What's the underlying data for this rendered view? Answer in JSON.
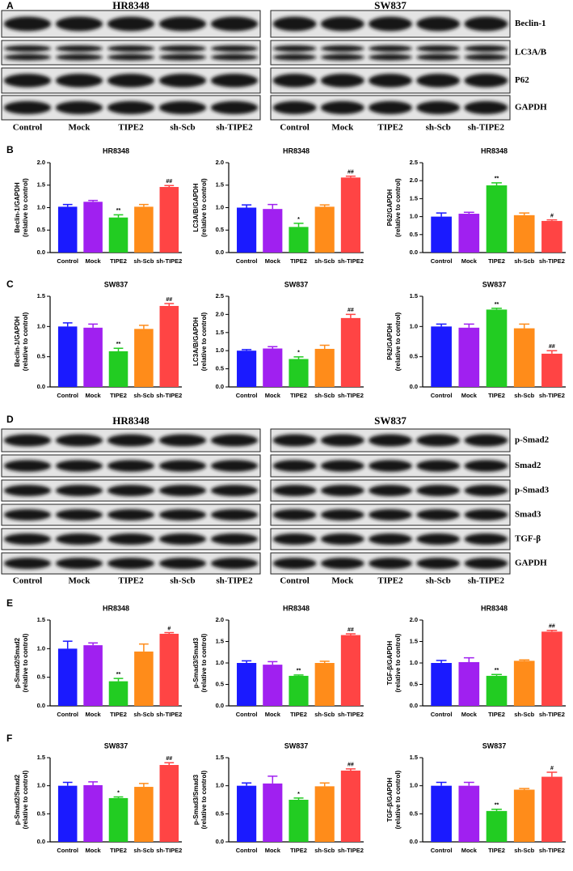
{
  "panels": [
    "A",
    "B",
    "C",
    "D",
    "E",
    "F"
  ],
  "blots": [
    {
      "cell_lines": [
        "HR8348",
        "SW837"
      ],
      "proteins": [
        "Beclin-1",
        "LC3A/B",
        "P62",
        "GAPDH"
      ],
      "lanes": [
        "Control",
        "Mock",
        "TIPE2",
        "sh-Scb",
        "sh-TIPE2"
      ]
    },
    {
      "cell_lines": [
        "HR8348",
        "SW837"
      ],
      "proteins": [
        "p-Smad2",
        "Smad2",
        "p-Smad3",
        "Smad3",
        "TGF-β",
        "GAPDH"
      ],
      "lanes": [
        "Control",
        "Mock",
        "TIPE2",
        "sh-Scb",
        "sh-TIPE2"
      ]
    }
  ],
  "chart_data": [
    {
      "type": "bar",
      "title": "HR8348",
      "ylabel": [
        "Beclin-1/GAPDH",
        "(relative to control)"
      ],
      "categories": [
        "Control",
        "Mock",
        "TIPE2",
        "sh-Scb",
        "sh-TIPE2"
      ],
      "values": [
        1.02,
        1.13,
        0.78,
        1.02,
        1.46
      ],
      "errors": [
        0.05,
        0.03,
        0.06,
        0.05,
        0.03
      ],
      "annotations": [
        null,
        null,
        "**",
        null,
        "##"
      ],
      "colors": [
        "#1a1aff",
        "#a020f0",
        "#22cc22",
        "#ff8c1a",
        "#ff4444"
      ],
      "ylim": [
        0,
        2
      ],
      "yticks": [
        {
          "value": 0,
          "label": "0.0"
        },
        0.5,
        {
          "value": 1,
          "label": "1.0"
        },
        1.5,
        {
          "value": 2,
          "label": "2.0"
        }
      ]
    },
    {
      "type": "bar",
      "title": "HR8348",
      "ylabel": [
        "LC3A/B/GAPDH",
        "(relative to control)"
      ],
      "categories": [
        "Control",
        "Mock",
        "TIPE2",
        "sh-Scb",
        "sh-TIPE2"
      ],
      "values": [
        1.0,
        0.97,
        0.57,
        1.02,
        1.67
      ],
      "errors": [
        0.06,
        0.1,
        0.08,
        0.04,
        0.03
      ],
      "annotations": [
        null,
        null,
        "*",
        null,
        "##"
      ],
      "colors": [
        "#1a1aff",
        "#a020f0",
        "#22cc22",
        "#ff8c1a",
        "#ff4444"
      ],
      "ylim": [
        0,
        2
      ],
      "yticks": [
        {
          "value": 0,
          "label": "0.0"
        },
        0.5,
        {
          "value": 1,
          "label": "1.0"
        },
        1.5,
        {
          "value": 2,
          "label": "2.0"
        }
      ]
    },
    {
      "type": "bar",
      "title": "HR8348",
      "ylabel": [
        "P62/GAPDH",
        "(relative to control)"
      ],
      "categories": [
        "Control",
        "Mock",
        "TIPE2",
        "sh-Scb",
        "sh-TIPE2"
      ],
      "values": [
        1.0,
        1.08,
        1.87,
        1.04,
        0.88
      ],
      "errors": [
        0.1,
        0.04,
        0.07,
        0.06,
        0.03
      ],
      "annotations": [
        null,
        null,
        "**",
        null,
        "#"
      ],
      "colors": [
        "#1a1aff",
        "#a020f0",
        "#22cc22",
        "#ff8c1a",
        "#ff4444"
      ],
      "ylim": [
        0,
        2.5
      ],
      "yticks": [
        {
          "value": 0,
          "label": "0.0"
        },
        0.5,
        {
          "value": 1,
          "label": "1.0"
        },
        1.5,
        {
          "value": 2,
          "label": "2.0"
        },
        2.5
      ]
    },
    {
      "type": "bar",
      "title": "SW837",
      "ylabel": [
        "Beclin-1/GAPDH",
        "(relative to control)"
      ],
      "categories": [
        "Control",
        "Mock",
        "TIPE2",
        "sh-Scb",
        "sh-TIPE2"
      ],
      "values": [
        1.0,
        0.98,
        0.59,
        0.96,
        1.34
      ],
      "errors": [
        0.06,
        0.06,
        0.05,
        0.06,
        0.04
      ],
      "annotations": [
        null,
        null,
        "**",
        null,
        "##"
      ],
      "colors": [
        "#1a1aff",
        "#a020f0",
        "#22cc22",
        "#ff8c1a",
        "#ff4444"
      ],
      "ylim": [
        0,
        1.5
      ],
      "yticks": [
        {
          "value": 0,
          "label": "0.0"
        },
        0.5,
        {
          "value": 1,
          "label": "1.0"
        },
        1.5
      ]
    },
    {
      "type": "bar",
      "title": "SW837",
      "ylabel": [
        "LC3A/B/GAPDH",
        "(relative to control)"
      ],
      "categories": [
        "Control",
        "Mock",
        "TIPE2",
        "sh-Scb",
        "sh-TIPE2"
      ],
      "values": [
        1.0,
        1.06,
        0.77,
        1.05,
        1.9
      ],
      "errors": [
        0.03,
        0.05,
        0.06,
        0.1,
        0.1
      ],
      "annotations": [
        null,
        null,
        "*",
        null,
        "##"
      ],
      "colors": [
        "#1a1aff",
        "#a020f0",
        "#22cc22",
        "#ff8c1a",
        "#ff4444"
      ],
      "ylim": [
        0,
        2.5
      ],
      "yticks": [
        {
          "value": 0,
          "label": "0.0"
        },
        0.5,
        {
          "value": 1,
          "label": "1.0"
        },
        1.5,
        {
          "value": 2,
          "label": "2.0"
        },
        2.5
      ]
    },
    {
      "type": "bar",
      "title": "SW837",
      "ylabel": [
        "P62/GAPDH",
        "(relative to control)"
      ],
      "categories": [
        "Control",
        "Mock",
        "TIPE2",
        "sh-Scb",
        "sh-TIPE2"
      ],
      "values": [
        1.0,
        0.98,
        1.28,
        0.97,
        0.55
      ],
      "errors": [
        0.04,
        0.06,
        0.02,
        0.07,
        0.05
      ],
      "annotations": [
        null,
        null,
        "**",
        null,
        "##"
      ],
      "colors": [
        "#1a1aff",
        "#a020f0",
        "#22cc22",
        "#ff8c1a",
        "#ff4444"
      ],
      "ylim": [
        0,
        1.5
      ],
      "yticks": [
        {
          "value": 0,
          "label": "0.0"
        },
        0.5,
        {
          "value": 1,
          "label": "1.0"
        },
        1.5
      ]
    },
    {
      "type": "bar",
      "title": "HR8348",
      "ylabel": [
        "p-Smad2/Smad2",
        "(relative to control)"
      ],
      "categories": [
        "Control",
        "Mock",
        "TIPE2",
        "sh-Scb",
        "sh-TIPE2"
      ],
      "values": [
        1.0,
        1.06,
        0.43,
        0.95,
        1.26
      ],
      "errors": [
        0.13,
        0.04,
        0.05,
        0.13,
        0.02
      ],
      "annotations": [
        null,
        null,
        "**",
        null,
        "#"
      ],
      "colors": [
        "#1a1aff",
        "#a020f0",
        "#22cc22",
        "#ff8c1a",
        "#ff4444"
      ],
      "ylim": [
        0,
        1.5
      ],
      "yticks": [
        {
          "value": 0,
          "label": "0.0"
        },
        0.5,
        {
          "value": 1,
          "label": "1.0"
        },
        1.5
      ]
    },
    {
      "type": "bar",
      "title": "HR8348",
      "ylabel": [
        "p-Smad3/Smad3",
        "(relative to control)"
      ],
      "categories": [
        "Control",
        "Mock",
        "TIPE2",
        "sh-Scb",
        "sh-TIPE2"
      ],
      "values": [
        1.0,
        0.96,
        0.7,
        1.0,
        1.65
      ],
      "errors": [
        0.05,
        0.07,
        0.02,
        0.04,
        0.03
      ],
      "annotations": [
        null,
        null,
        "**",
        null,
        "##"
      ],
      "colors": [
        "#1a1aff",
        "#a020f0",
        "#22cc22",
        "#ff8c1a",
        "#ff4444"
      ],
      "ylim": [
        0,
        2
      ],
      "yticks": [
        {
          "value": 0,
          "label": "0.0"
        },
        0.5,
        {
          "value": 1,
          "label": "1.0"
        },
        1.5,
        {
          "value": 2,
          "label": "2.0"
        }
      ]
    },
    {
      "type": "bar",
      "title": "HR8348",
      "ylabel": [
        "TGF-β/GAPDH",
        "(relative to control)"
      ],
      "categories": [
        "Control",
        "Mock",
        "TIPE2",
        "sh-Scb",
        "sh-TIPE2"
      ],
      "values": [
        1.0,
        1.02,
        0.7,
        1.05,
        1.73
      ],
      "errors": [
        0.06,
        0.1,
        0.03,
        0.02,
        0.03
      ],
      "annotations": [
        null,
        null,
        "**",
        null,
        "##"
      ],
      "colors": [
        "#1a1aff",
        "#a020f0",
        "#22cc22",
        "#ff8c1a",
        "#ff4444"
      ],
      "ylim": [
        0,
        2
      ],
      "yticks": [
        {
          "value": 0,
          "label": "0.0"
        },
        0.5,
        {
          "value": 1,
          "label": "1.0"
        },
        1.5,
        {
          "value": 2,
          "label": "2.0"
        }
      ]
    },
    {
      "type": "bar",
      "title": "SW837",
      "ylabel": [
        "p-Smad2/Smad2",
        "(relative to control)"
      ],
      "categories": [
        "Control",
        "Mock",
        "TIPE2",
        "sh-Scb",
        "sh-TIPE2"
      ],
      "values": [
        1.0,
        1.01,
        0.78,
        0.98,
        1.37
      ],
      "errors": [
        0.06,
        0.06,
        0.02,
        0.06,
        0.04
      ],
      "annotations": [
        null,
        null,
        "*",
        null,
        "##"
      ],
      "colors": [
        "#1a1aff",
        "#a020f0",
        "#22cc22",
        "#ff8c1a",
        "#ff4444"
      ],
      "ylim": [
        0,
        1.5
      ],
      "yticks": [
        {
          "value": 0,
          "label": "0.0"
        },
        0.5,
        {
          "value": 1,
          "label": "1.0"
        },
        1.5
      ]
    },
    {
      "type": "bar",
      "title": "SW837",
      "ylabel": [
        "p-Smad3/Smad3",
        "(relative to control)"
      ],
      "categories": [
        "Control",
        "Mock",
        "TIPE2",
        "sh-Scb",
        "sh-TIPE2"
      ],
      "values": [
        1.0,
        1.04,
        0.75,
        0.99,
        1.27
      ],
      "errors": [
        0.05,
        0.13,
        0.03,
        0.06,
        0.03
      ],
      "annotations": [
        null,
        null,
        "*",
        null,
        "##"
      ],
      "colors": [
        "#1a1aff",
        "#a020f0",
        "#22cc22",
        "#ff8c1a",
        "#ff4444"
      ],
      "ylim": [
        0,
        1.5
      ],
      "yticks": [
        {
          "value": 0,
          "label": "0.0"
        },
        0.5,
        {
          "value": 1,
          "label": "1.0"
        },
        1.5
      ]
    },
    {
      "type": "bar",
      "title": "SW837",
      "ylabel": [
        "TGF-β/GAPDH",
        "(relative to control)"
      ],
      "categories": [
        "Control",
        "Mock",
        "TIPE2",
        "sh-Scb",
        "sh-TIPE2"
      ],
      "values": [
        1.0,
        1.0,
        0.55,
        0.93,
        1.16
      ],
      "errors": [
        0.06,
        0.06,
        0.03,
        0.02,
        0.08
      ],
      "annotations": [
        null,
        null,
        "**",
        null,
        "#"
      ],
      "colors": [
        "#1a1aff",
        "#a020f0",
        "#22cc22",
        "#ff8c1a",
        "#ff4444"
      ],
      "ylim": [
        0,
        1.5
      ],
      "yticks": [
        {
          "value": 0,
          "label": "0.0"
        },
        0.5,
        {
          "value": 1,
          "label": "1.0"
        },
        1.5
      ]
    }
  ]
}
